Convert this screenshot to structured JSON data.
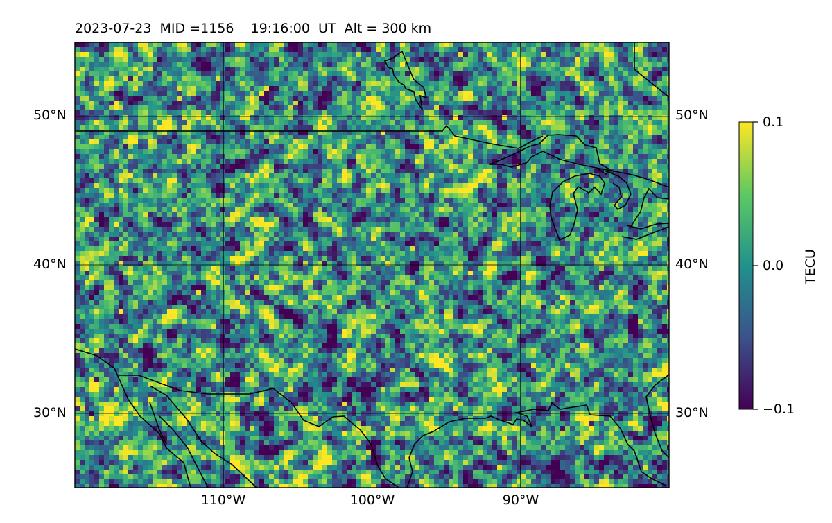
{
  "title": {
    "text": "2023-07-23  MID =1156    19:16:00  UT  Alt = 300 km"
  },
  "map": {
    "lat_labels": [
      "50°N",
      "40°N",
      "30°N"
    ],
    "lon_labels": [
      "110°W",
      "100°W",
      "90°W"
    ],
    "extent": {
      "lon_min": -120,
      "lon_max": -80,
      "lat_min": 25,
      "lat_max": 55
    }
  },
  "colorbar": {
    "label": "TECU",
    "ticks": [
      "0.1",
      "0.0",
      "−0.1"
    ],
    "vmin": -0.1,
    "vmax": 0.1,
    "colormap": "viridis",
    "colors": [
      "#440154",
      "#3b528b",
      "#21918c",
      "#5ec962",
      "#fde725"
    ]
  },
  "chart_data": {
    "type": "heatmap",
    "title": "2023-07-23  MID =1156    19:16:00  UT  Alt = 300 km",
    "xlabel": "",
    "ylabel": "",
    "xlim": [
      -120,
      -80
    ],
    "ylim": [
      25,
      55
    ],
    "xticks": [
      -110,
      -100,
      -90
    ],
    "yticks": [
      30,
      40,
      50
    ],
    "value_range": [
      -0.1,
      0.1
    ],
    "units": "TECU",
    "grid": true
  }
}
